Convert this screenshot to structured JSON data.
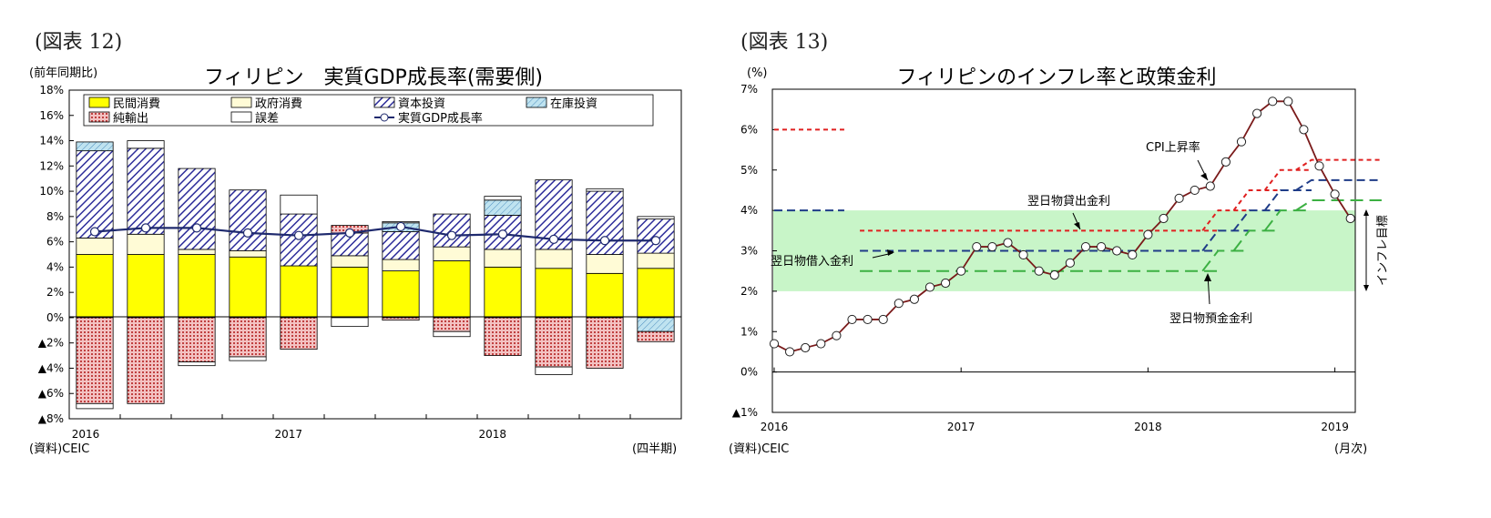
{
  "left": {
    "figure_label": "(図表 12)",
    "unit_label": "(前年同期比)",
    "source": "(資料)CEIC",
    "period_note": "(四半期)"
  },
  "right": {
    "figure_label": "(図表 13)",
    "unit_label": "(%)",
    "source": "(資料)CEIC",
    "period_note": "(月次)"
  },
  "colors": {
    "private": "#ffff00",
    "government": "#fffbd6",
    "investment_stroke": "#2d2d9a",
    "inventory_fill": "#bfe3f0",
    "inventory_stroke": "#4f8fbf",
    "netexport_fill": "#f0b4b4",
    "netexport_stroke": "#c04040",
    "gdp_line": "#1f2a6e",
    "cpi_line": "#7a1a1a",
    "lending": "#e02020",
    "borrowing": "#1f3c88",
    "deposit": "#3cb043",
    "target_band": "#c8f5c8"
  },
  "chart_data": [
    {
      "type": "bar",
      "title": "フィリピン　実質GDP成長率(需要側)",
      "categories": [
        "2016Q1",
        "2016Q2",
        "2016Q3",
        "2016Q4",
        "2017Q1",
        "2017Q2",
        "2017Q3",
        "2017Q4",
        "2018Q1",
        "2018Q2",
        "2018Q3",
        "2018Q4"
      ],
      "year_labels": [
        {
          "label": "2016",
          "index": 0
        },
        {
          "label": "2017",
          "index": 4
        },
        {
          "label": "2018",
          "index": 8
        }
      ],
      "ylim": [
        -8,
        18
      ],
      "yticks": [
        {
          "v": 18,
          "label": "18%"
        },
        {
          "v": 16,
          "label": "16%"
        },
        {
          "v": 14,
          "label": "14%"
        },
        {
          "v": 12,
          "label": "12%"
        },
        {
          "v": 10,
          "label": "10%"
        },
        {
          "v": 8,
          "label": "8%"
        },
        {
          "v": 6,
          "label": "6%"
        },
        {
          "v": 4,
          "label": "4%"
        },
        {
          "v": 2,
          "label": "2%"
        },
        {
          "v": 0,
          "label": "0%"
        },
        {
          "v": -2,
          "label": "▲2%"
        },
        {
          "v": -4,
          "label": "▲4%"
        },
        {
          "v": -6,
          "label": "▲6%"
        },
        {
          "v": -8,
          "label": "▲8%"
        }
      ],
      "legend": [
        {
          "key": "private",
          "label": "民間消費"
        },
        {
          "key": "government",
          "label": "政府消費"
        },
        {
          "key": "investment",
          "label": "資本投資"
        },
        {
          "key": "inventory",
          "label": "在庫投資"
        },
        {
          "key": "netexports",
          "label": "純輸出"
        },
        {
          "key": "discrepancy",
          "label": "誤差"
        },
        {
          "key": "gdp",
          "label": "実質GDP成長率"
        }
      ],
      "series": [
        {
          "key": "private",
          "values": [
            5.0,
            5.0,
            5.0,
            4.8,
            4.1,
            4.0,
            3.7,
            4.5,
            4.0,
            3.9,
            3.5,
            3.9
          ]
        },
        {
          "key": "government",
          "values": [
            1.3,
            1.6,
            0.4,
            0.5,
            0.0,
            0.9,
            0.9,
            1.1,
            1.4,
            1.5,
            1.5,
            1.2
          ]
        },
        {
          "key": "investment",
          "values": [
            6.9,
            6.8,
            6.4,
            4.8,
            4.1,
            1.8,
            2.2,
            2.6,
            2.7,
            5.5,
            5.0,
            2.7
          ]
        },
        {
          "key": "inventory",
          "values": [
            0.7,
            0.0,
            0.0,
            0.0,
            0.0,
            0.0,
            0.7,
            0.0,
            1.2,
            0.0,
            0.0,
            -1.1
          ]
        },
        {
          "key": "netexports",
          "values": [
            -6.8,
            -6.8,
            -3.5,
            -3.1,
            -2.5,
            0.6,
            -0.2,
            -1.1,
            -3.0,
            -3.9,
            -4.0,
            -0.8
          ]
        },
        {
          "key": "discrepancy",
          "values": [
            -0.4,
            0.6,
            -0.3,
            -0.3,
            1.5,
            -0.7,
            0.1,
            -0.4,
            0.3,
            -0.6,
            0.2,
            0.2
          ]
        },
        {
          "key": "gdp",
          "values": [
            6.8,
            7.1,
            7.1,
            6.7,
            6.5,
            6.7,
            7.2,
            6.5,
            6.6,
            6.2,
            6.1,
            6.1
          ]
        }
      ]
    },
    {
      "type": "line",
      "title": "フィリピンのインフレ率と政策金利",
      "x_start": "2016-01",
      "x_end": "2019-02",
      "year_labels": [
        {
          "label": "2016",
          "month": 0
        },
        {
          "label": "2017",
          "month": 12
        },
        {
          "label": "2018",
          "month": 24
        },
        {
          "label": "2019",
          "month": 36
        }
      ],
      "ylim": [
        -1,
        7
      ],
      "yticks": [
        {
          "v": 7,
          "label": "7%"
        },
        {
          "v": 6,
          "label": "6%"
        },
        {
          "v": 5,
          "label": "5%"
        },
        {
          "v": 4,
          "label": "4%"
        },
        {
          "v": 3,
          "label": "3%"
        },
        {
          "v": 2,
          "label": "2%"
        },
        {
          "v": 1,
          "label": "1%"
        },
        {
          "v": 0,
          "label": "0%"
        },
        {
          "v": -1,
          "label": "▲1%"
        }
      ],
      "target_band": {
        "low": 2,
        "high": 4,
        "label": "インフレ目標"
      },
      "series": [
        {
          "key": "cpi",
          "name": "CPI上昇率",
          "values": [
            0.7,
            0.5,
            0.6,
            0.7,
            0.9,
            1.3,
            1.3,
            1.3,
            1.7,
            1.8,
            2.1,
            2.2,
            2.5,
            3.1,
            3.1,
            3.2,
            2.9,
            2.5,
            2.4,
            2.7,
            3.1,
            3.1,
            3.0,
            2.9,
            3.4,
            3.8,
            4.3,
            4.5,
            4.6,
            5.2,
            5.7,
            6.4,
            6.7,
            6.7,
            6.0,
            5.1,
            4.4,
            3.8
          ]
        },
        {
          "key": "lending",
          "name": "翌日物貸出金利",
          "steps": [
            {
              "from": 0,
              "to": 4.5,
              "v": 6.0
            },
            {
              "from": 5.5,
              "to": 28.5,
              "v": 3.5
            },
            {
              "from": 28.5,
              "to": 30.5,
              "v": 4.0
            },
            {
              "from": 30.5,
              "to": 32.5,
              "v": 4.5
            },
            {
              "from": 32.5,
              "to": 34.5,
              "v": 5.0
            },
            {
              "from": 34.5,
              "to": 39,
              "v": 5.25
            }
          ]
        },
        {
          "key": "borrowing",
          "name": "翌日物借入金利",
          "steps": [
            {
              "from": 0,
              "to": 4.5,
              "v": 4.0
            },
            {
              "from": 5.5,
              "to": 28.5,
              "v": 3.0
            },
            {
              "from": 28.5,
              "to": 30.5,
              "v": 3.5
            },
            {
              "from": 30.5,
              "to": 32.5,
              "v": 4.0
            },
            {
              "from": 32.5,
              "to": 34.5,
              "v": 4.5
            },
            {
              "from": 34.5,
              "to": 39,
              "v": 4.75
            }
          ]
        },
        {
          "key": "deposit",
          "name": "翌日物預金金利",
          "steps": [
            {
              "from": 5.5,
              "to": 28.5,
              "v": 2.5
            },
            {
              "from": 28.5,
              "to": 30.5,
              "v": 3.0
            },
            {
              "from": 30.5,
              "to": 32.5,
              "v": 3.5
            },
            {
              "from": 32.5,
              "to": 34.5,
              "v": 4.0
            },
            {
              "from": 34.5,
              "to": 39,
              "v": 4.25
            }
          ]
        }
      ]
    }
  ]
}
